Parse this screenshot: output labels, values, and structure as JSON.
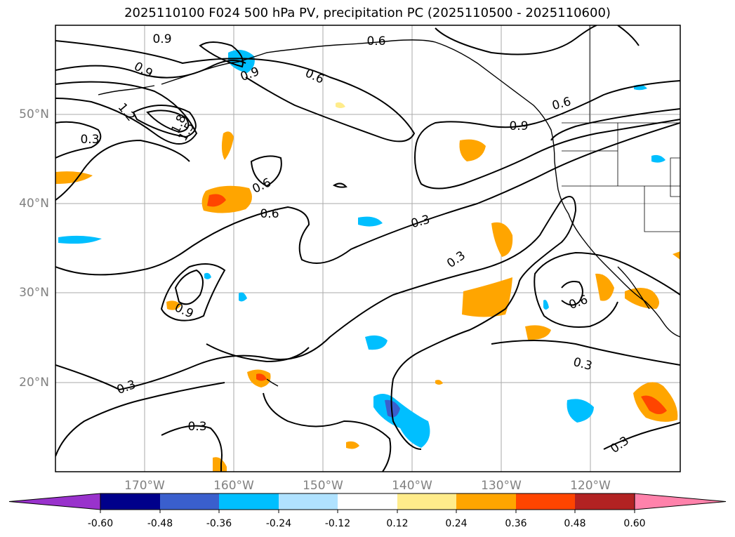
{
  "title": "2025110100 F024 500 hPa PV, precipitation PC (2025110500 - 2025110600)",
  "axes": {
    "lon_labels": [
      "170°W",
      "160°W",
      "150°W",
      "140°W",
      "130°W",
      "120°W"
    ],
    "lat_labels": [
      "50°N",
      "40°N",
      "30°N",
      "20°N"
    ]
  },
  "contour_labels": [
    "0.9",
    "0.6",
    "0.9",
    "0.9",
    "0.6",
    "1.2",
    "1.8",
    "1.5",
    "0.3",
    "0.6",
    "0.6",
    "0.9",
    "0.3",
    "0.3",
    "0.9",
    "0.6",
    "0.3",
    "0.3",
    "0.3",
    "0.3",
    "0.6"
  ],
  "colorbar": {
    "tick_labels": [
      "-0.60",
      "-0.48",
      "-0.36",
      "-0.24",
      "-0.12",
      "0.12",
      "0.24",
      "0.36",
      "0.48",
      "0.60"
    ],
    "colors": [
      "#9932cc",
      "#00008b",
      "#3a5fcd",
      "#00bfff",
      "#b0e2ff",
      "#ffffff",
      "#ffec8b",
      "#ffa500",
      "#ff4500",
      "#b22222",
      "#ff82ab"
    ]
  },
  "colors": {
    "gridline": "#aaaaaa",
    "contour": "#000000"
  }
}
